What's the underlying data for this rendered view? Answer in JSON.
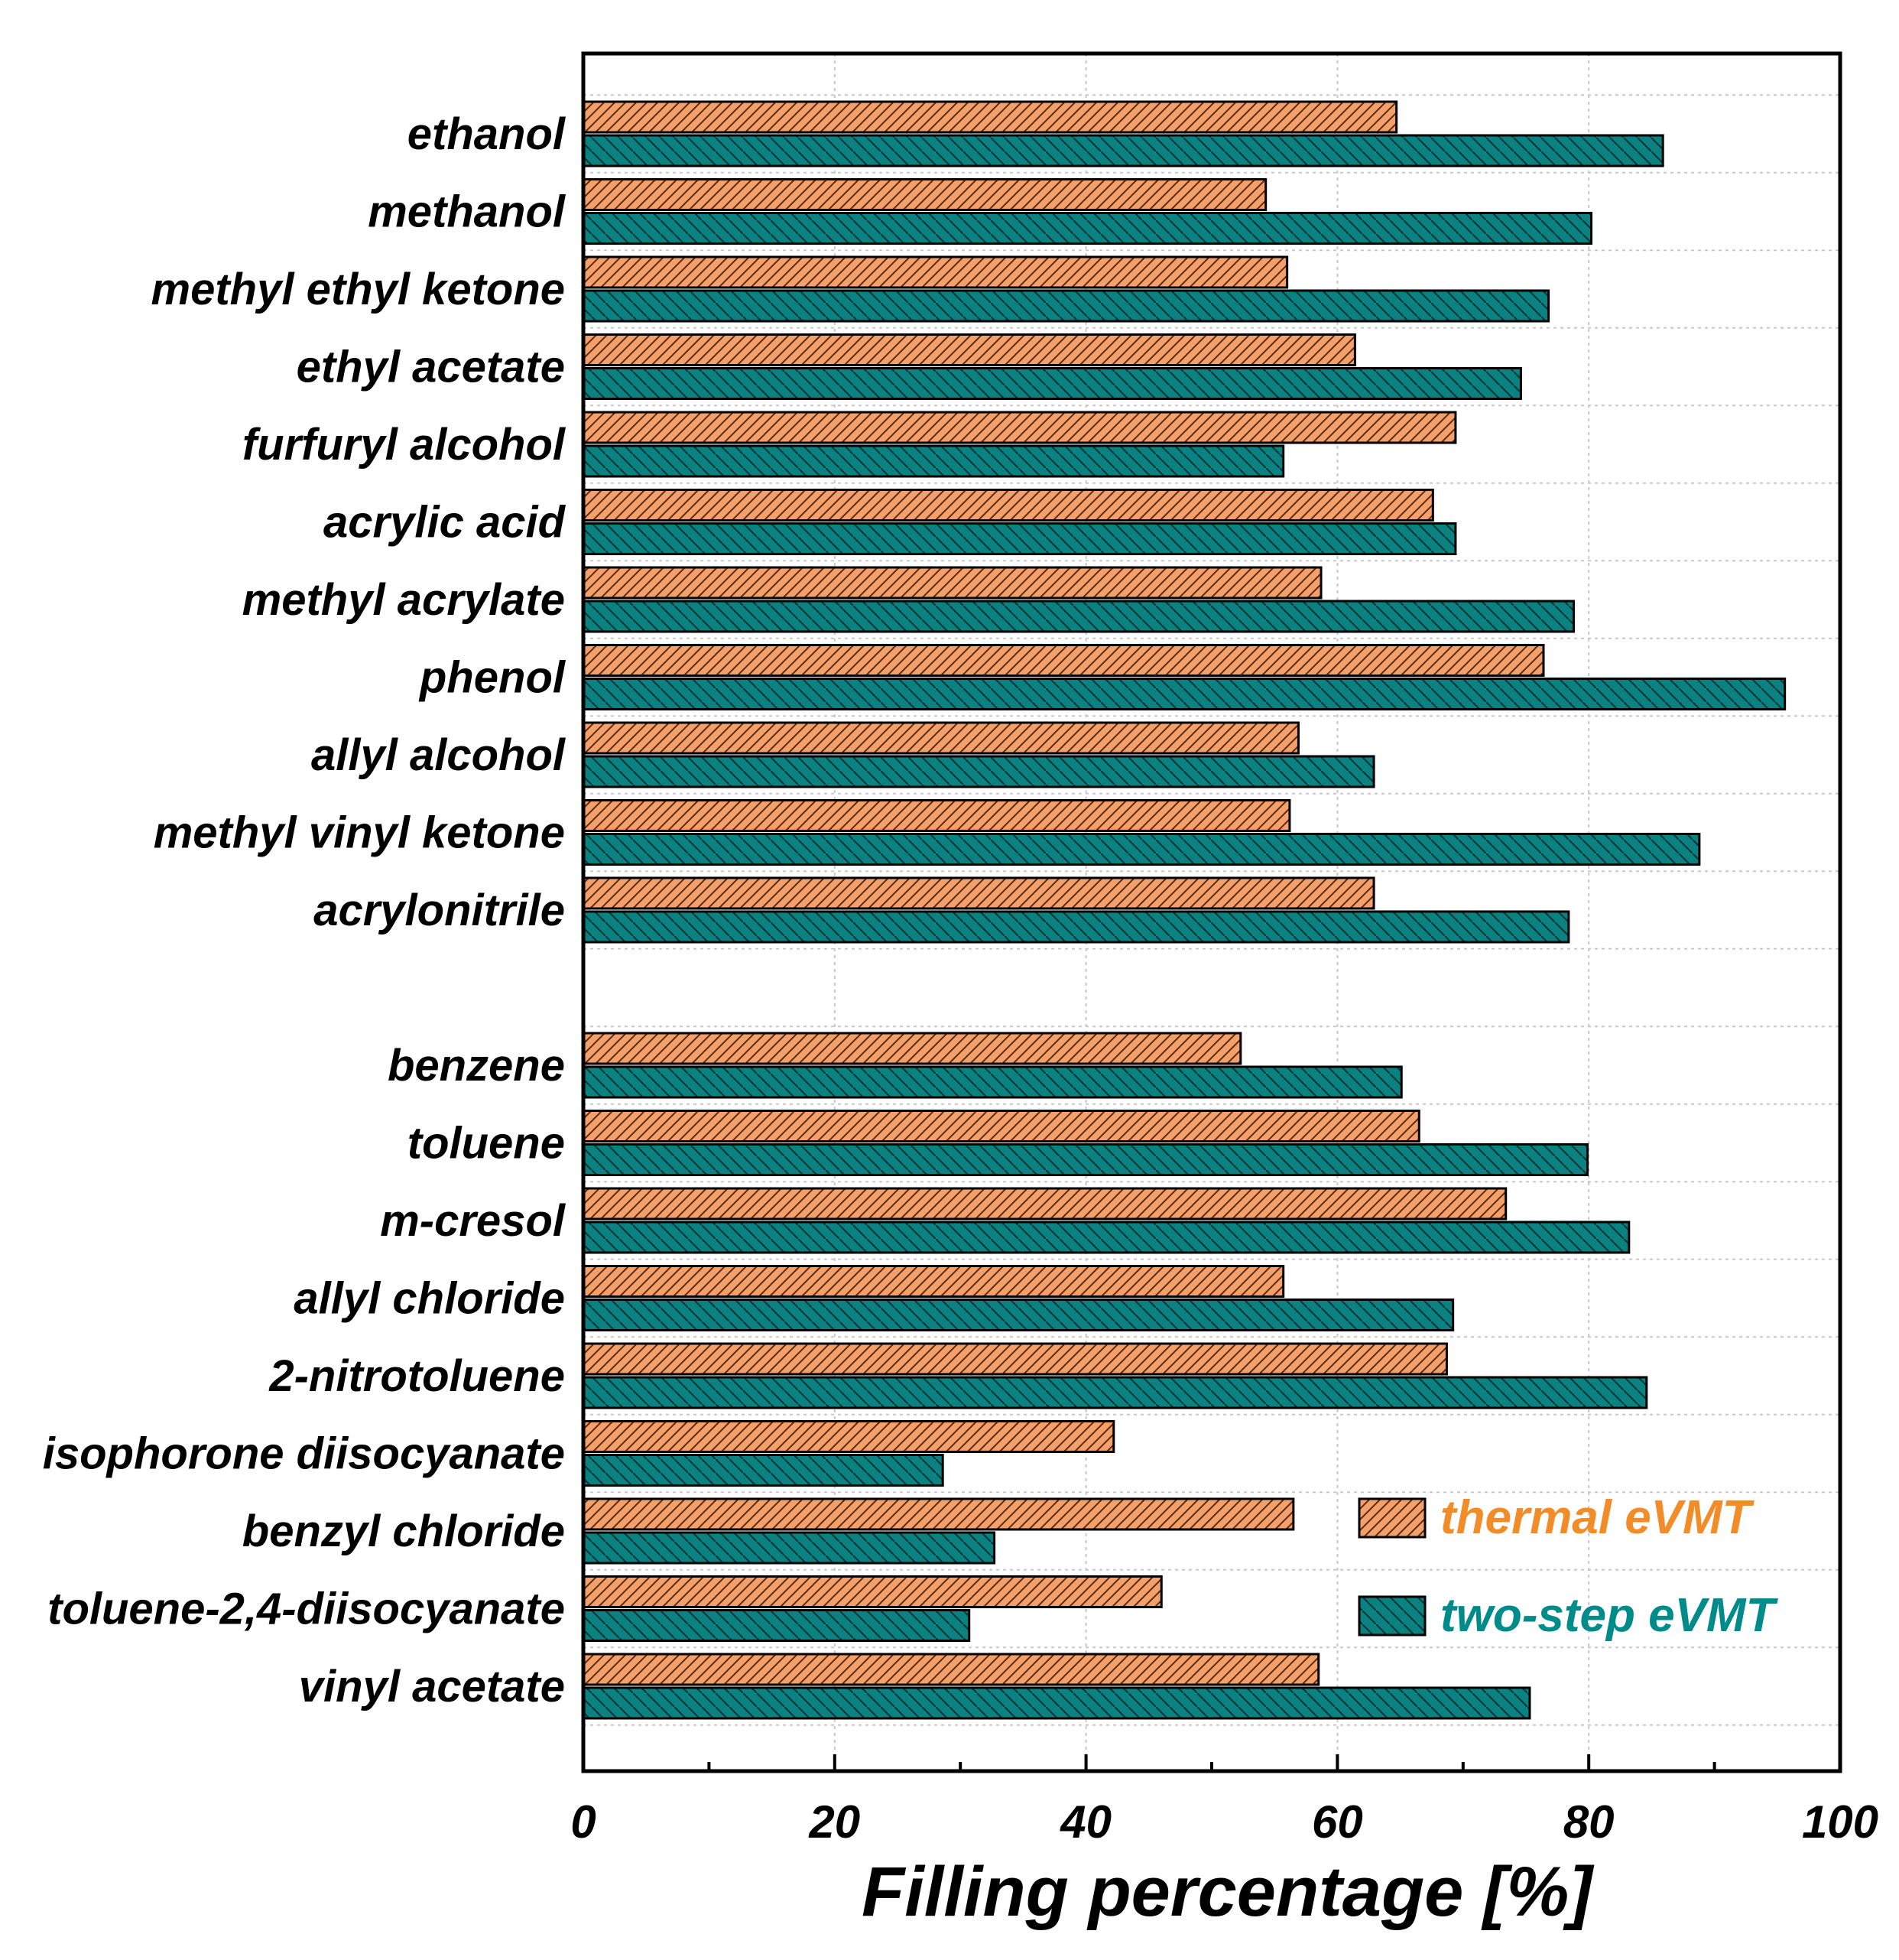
{
  "chart_data": {
    "type": "bar",
    "orientation": "horizontal",
    "title": "",
    "xlabel": "Filling percentage [%]",
    "ylabel": "",
    "xlim": [
      0,
      100
    ],
    "xticks": [
      "0",
      "20",
      "40",
      "60",
      "80",
      "100"
    ],
    "grid": true,
    "legend_position": "bottom-right",
    "groups": [
      [
        "ethanol",
        "methanol",
        "methyl ethyl ketone",
        "ethyl acetate",
        "furfuryl alcohol",
        "acrylic acid",
        "methyl acrylate",
        "phenol",
        "allyl alcohol",
        "methyl vinyl ketone",
        "acrylonitrile"
      ],
      [
        "benzene",
        "toluene",
        "m-cresol",
        "allyl chloride",
        "2-nitrotoluene",
        "isophorone diisocyanate",
        "benzyl chloride",
        "toluene-2,4-diisocyanate",
        "vinyl acetate"
      ]
    ],
    "categories": [
      "ethanol",
      "methanol",
      "methyl ethyl ketone",
      "ethyl acetate",
      "furfuryl alcohol",
      "acrylic acid",
      "methyl acrylate",
      "phenol",
      "allyl alcohol",
      "methyl vinyl ketone",
      "acrylonitrile",
      "benzene",
      "toluene",
      "m-cresol",
      "allyl chloride",
      "2-nitrotoluene",
      "isophorone diisocyanate",
      "benzyl chloride",
      "toluene-2,4-diisocyanate",
      "vinyl acetate"
    ],
    "series": [
      {
        "name": "thermal eVMT",
        "color": "#F4A06B",
        "label_color": "#F28C28",
        "values": [
          64.7,
          54.3,
          56.0,
          61.4,
          69.4,
          67.6,
          58.7,
          76.4,
          56.9,
          56.2,
          62.9,
          52.3,
          66.5,
          73.4,
          55.7,
          68.7,
          42.2,
          56.5,
          46.0,
          58.5
        ]
      },
      {
        "name": "two-step eVMT",
        "color": "#0A8282",
        "label_color": "#008B8B",
        "values": [
          85.9,
          80.2,
          76.8,
          74.6,
          55.7,
          69.4,
          78.8,
          95.6,
          62.9,
          88.8,
          78.4,
          65.1,
          79.9,
          83.2,
          69.2,
          84.6,
          28.6,
          32.7,
          30.7,
          75.3
        ]
      }
    ]
  },
  "colors": {
    "thermal": "#F4A06B",
    "two_step": "#0A8282",
    "thermal_text": "#F28C28",
    "two_step_text": "#008B8B",
    "grid": "#c8c8c8"
  }
}
